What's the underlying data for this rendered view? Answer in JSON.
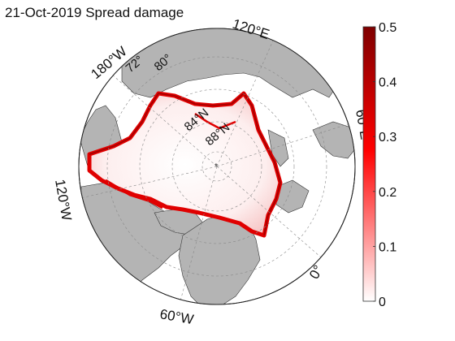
{
  "title": "21-Oct-2019 Spread damage",
  "lon_labels": [
    "120°E",
    "180°W",
    "120°W",
    "60°W",
    "0°",
    "60°E"
  ],
  "lat_labels": [
    "72°",
    "80°",
    "84°N",
    "88°N"
  ],
  "colorbar": {
    "ticks": [
      "0",
      "0.1",
      "0.2",
      "0.3",
      "0.4",
      "0.5"
    ],
    "min": 0,
    "max": 0.5,
    "colors": [
      "#ffffff",
      "#ff0000",
      "#7f0000"
    ]
  },
  "colors": {
    "land": "#b4b4b4",
    "ocean": "#ffffff",
    "ice_low": "#fbe3e3",
    "ice_edge": "#e00000"
  }
}
